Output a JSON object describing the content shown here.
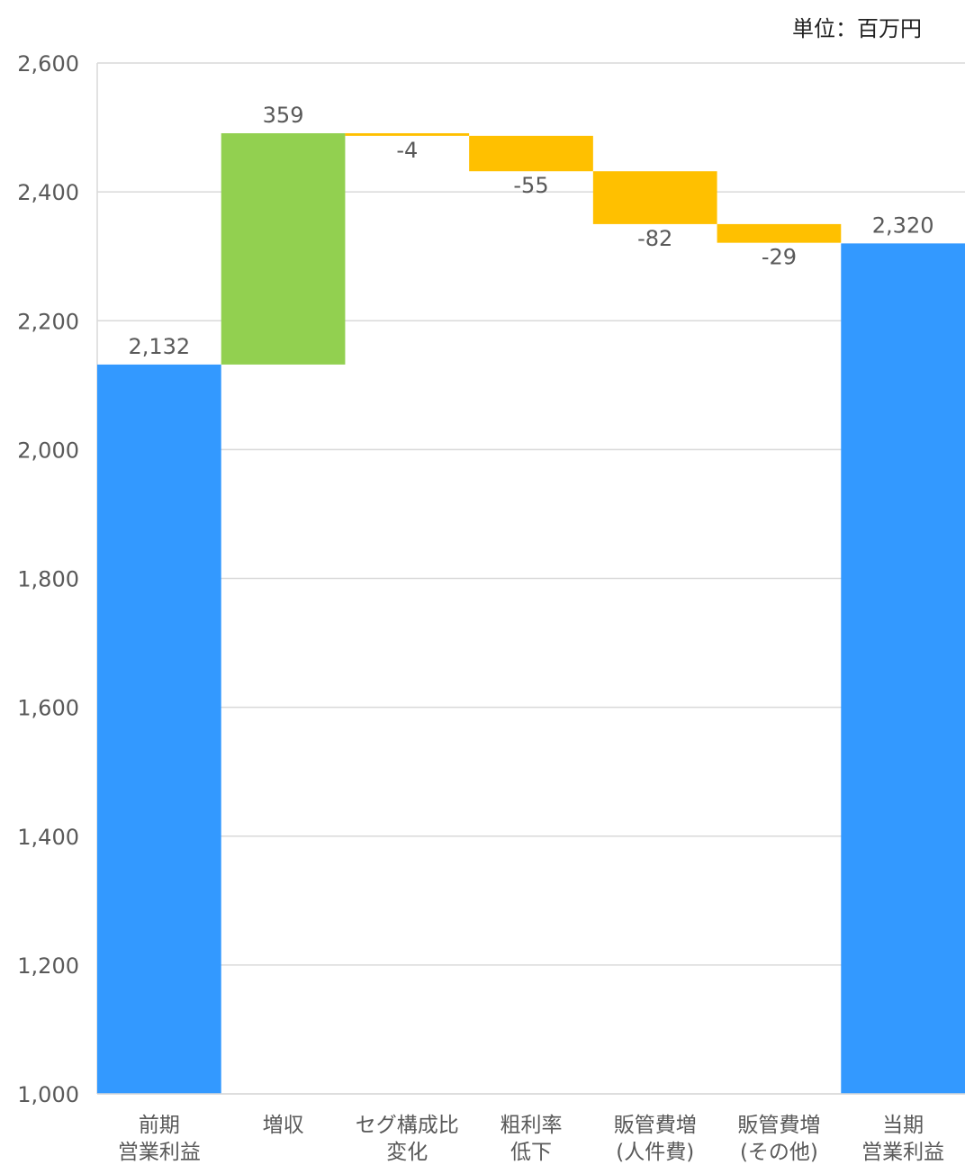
{
  "unit_label": "単位：百万円",
  "chart_data": {
    "type": "waterfall",
    "categories": [
      [
        "前期",
        "営業利益"
      ],
      [
        "増収"
      ],
      [
        "セグ構成比",
        "変化"
      ],
      [
        "粗利率",
        "低下"
      ],
      [
        "販管費増",
        "(人件費)"
      ],
      [
        "販管費増",
        "(その他)"
      ],
      [
        "当期",
        "営業利益"
      ]
    ],
    "values": [
      2132,
      359,
      -4,
      -55,
      -82,
      -29,
      2320
    ],
    "kinds": [
      "total",
      "increase",
      "decrease",
      "decrease",
      "decrease",
      "decrease",
      "total"
    ],
    "data_labels": [
      "2,132",
      "359",
      "-4",
      "-55",
      "-82",
      "-29",
      "2,320"
    ],
    "ylim": [
      1000,
      2600
    ],
    "yticks": [
      1000,
      1200,
      1400,
      1600,
      1800,
      2000,
      2200,
      2400,
      2600
    ],
    "ytick_labels": [
      "1,000",
      "1,200",
      "1,400",
      "1,600",
      "1,800",
      "2,000",
      "2,200",
      "2,400",
      "2,600"
    ],
    "grid": true,
    "colors": {
      "total": "#3399FF",
      "increase": "#92D050",
      "decrease": "#FFC000"
    }
  }
}
